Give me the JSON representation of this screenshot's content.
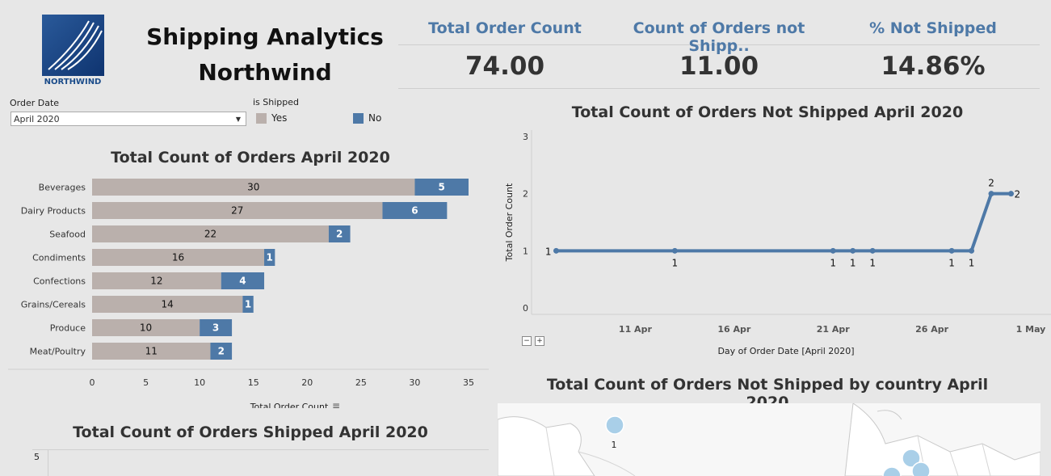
{
  "header": {
    "title_line1": "Shipping Analytics",
    "title_line2": "Northwind",
    "logo_text": "NORTHWIND"
  },
  "kpis": [
    {
      "label": "Total Order Count",
      "value": "74.00"
    },
    {
      "label": "Count of Orders not Shipp..",
      "value": "11.00"
    },
    {
      "label": "% Not Shipped",
      "value": "14.86%"
    }
  ],
  "filters": {
    "order_date_label": "Order Date",
    "order_date_value": "April 2020",
    "legend_title": "is Shipped",
    "legend_yes": "Yes",
    "legend_no": "No"
  },
  "colors": {
    "yes": "#bab0ac",
    "no": "#4e79a7"
  },
  "chart_data": [
    {
      "type": "bar",
      "title": "Total Count of Orders April 2020",
      "xlabel": "Total Order Count",
      "orientation": "horizontal-stacked",
      "categories": [
        "Beverages",
        "Dairy Products",
        "Seafood",
        "Condiments",
        "Confections",
        "Grains/Cereals",
        "Produce",
        "Meat/Poultry"
      ],
      "series": [
        {
          "name": "Yes",
          "values": [
            30,
            27,
            22,
            16,
            12,
            14,
            10,
            11
          ]
        },
        {
          "name": "No",
          "values": [
            5,
            6,
            2,
            1,
            4,
            1,
            3,
            2
          ]
        }
      ],
      "xticks": [
        "0",
        "5",
        "10",
        "15",
        "20",
        "25",
        "30",
        "35"
      ],
      "xlim": [
        0,
        35
      ]
    },
    {
      "type": "line",
      "title": "Total Count of Orders Not Shipped April 2020",
      "xlabel": "Day of Order Date [April 2020]",
      "ylabel": "Total Order Count",
      "x": [
        "2020-04-07",
        "2020-04-13",
        "2020-04-21",
        "2020-04-22",
        "2020-04-23",
        "2020-04-27",
        "2020-04-28",
        "2020-04-29",
        "2020-04-30"
      ],
      "values": [
        1,
        1,
        1,
        1,
        1,
        1,
        1,
        2,
        2
      ],
      "xticks": [
        "11 Apr",
        "16 Apr",
        "21 Apr",
        "26 Apr",
        "1 May"
      ],
      "yticks": [
        "0",
        "1",
        "2",
        "3"
      ],
      "ylim": [
        0,
        3
      ]
    },
    {
      "type": "line",
      "title": "Total Count of Orders Shipped April 2020",
      "yticks": [
        "5"
      ]
    }
  ],
  "map": {
    "title": "Total Count of Orders Not Shipped by country April 2020",
    "label": "1"
  }
}
